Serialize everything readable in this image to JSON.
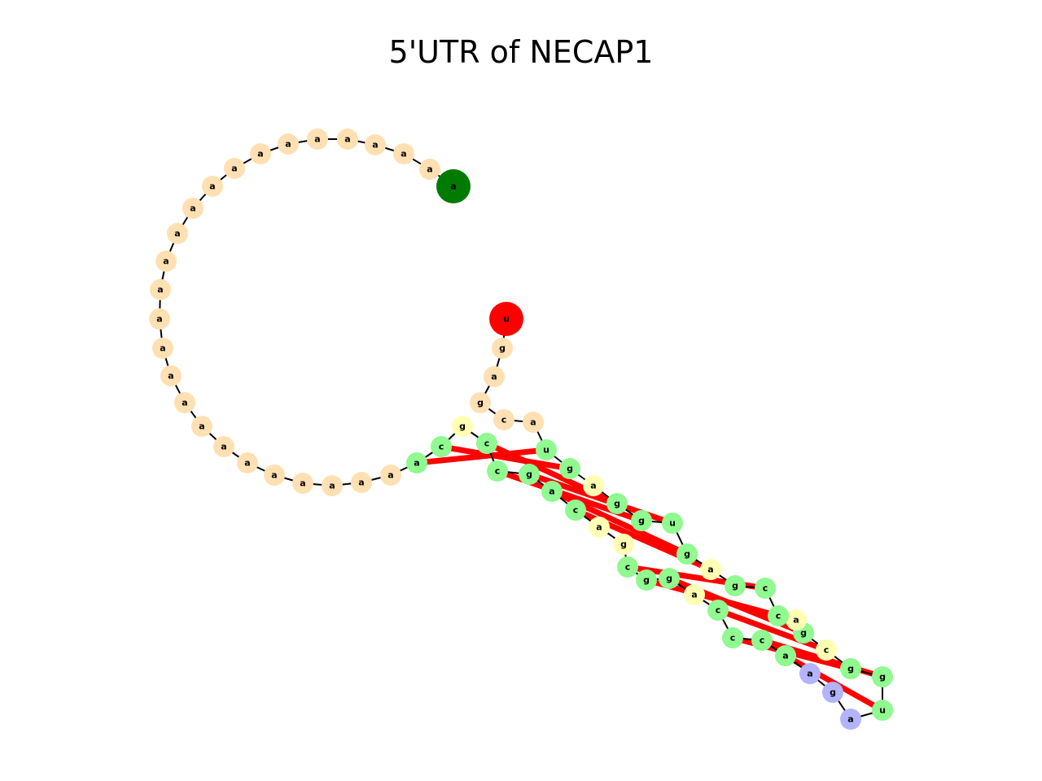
{
  "title": "5'UTR of NECAP1",
  "colors": {
    "loop": "#ffe0b3",
    "stem": "#90f990",
    "bulge": "#ffffb3",
    "hairpin": "#b3b3ff",
    "five_prime": "#007a00",
    "three_prime": "#ff0000",
    "backbone": "#000000",
    "pair": "#ff0000"
  },
  "nucleotides": [
    {
      "base": "a",
      "type": "five_prime"
    },
    {
      "base": "a",
      "type": "loop"
    },
    {
      "base": "a",
      "type": "loop"
    },
    {
      "base": "a",
      "type": "loop"
    },
    {
      "base": "a",
      "type": "loop"
    },
    {
      "base": "a",
      "type": "loop"
    },
    {
      "base": "a",
      "type": "loop"
    },
    {
      "base": "a",
      "type": "loop"
    },
    {
      "base": "a",
      "type": "loop"
    },
    {
      "base": "a",
      "type": "loop"
    },
    {
      "base": "a",
      "type": "loop"
    },
    {
      "base": "a",
      "type": "loop"
    },
    {
      "base": "a",
      "type": "loop"
    },
    {
      "base": "a",
      "type": "loop"
    },
    {
      "base": "a",
      "type": "loop"
    },
    {
      "base": "a",
      "type": "loop"
    },
    {
      "base": "a",
      "type": "loop"
    },
    {
      "base": "a",
      "type": "loop"
    },
    {
      "base": "a",
      "type": "loop"
    },
    {
      "base": "a",
      "type": "loop"
    },
    {
      "base": "a",
      "type": "loop"
    },
    {
      "base": "a",
      "type": "loop"
    },
    {
      "base": "a",
      "type": "loop"
    },
    {
      "base": "a",
      "type": "loop"
    },
    {
      "base": "a",
      "type": "loop"
    },
    {
      "base": "a",
      "type": "loop"
    },
    {
      "base": "a",
      "type": "stem"
    },
    {
      "base": "c",
      "type": "stem"
    },
    {
      "base": "g",
      "type": "bulge"
    },
    {
      "base": "c",
      "type": "stem"
    },
    {
      "base": "c",
      "type": "stem"
    },
    {
      "base": "g",
      "type": "stem"
    },
    {
      "base": "a",
      "type": "stem"
    },
    {
      "base": "c",
      "type": "stem"
    },
    {
      "base": "a",
      "type": "bulge"
    },
    {
      "base": "g",
      "type": "bulge"
    },
    {
      "base": "c",
      "type": "stem"
    },
    {
      "base": "g",
      "type": "stem"
    },
    {
      "base": "g",
      "type": "stem"
    },
    {
      "base": "a",
      "type": "bulge"
    },
    {
      "base": "c",
      "type": "stem"
    },
    {
      "base": "c",
      "type": "stem"
    },
    {
      "base": "c",
      "type": "stem"
    },
    {
      "base": "a",
      "type": "stem"
    },
    {
      "base": "a",
      "type": "hairpin"
    },
    {
      "base": "g",
      "type": "hairpin"
    },
    {
      "base": "a",
      "type": "hairpin"
    },
    {
      "base": "u",
      "type": "stem"
    },
    {
      "base": "g",
      "type": "stem"
    },
    {
      "base": "g",
      "type": "stem"
    },
    {
      "base": "c",
      "type": "bulge"
    },
    {
      "base": "g",
      "type": "stem"
    },
    {
      "base": "a",
      "type": "bulge"
    },
    {
      "base": "c",
      "type": "stem"
    },
    {
      "base": "c",
      "type": "stem"
    },
    {
      "base": "g",
      "type": "stem"
    },
    {
      "base": "a",
      "type": "bulge"
    },
    {
      "base": "g",
      "type": "stem"
    },
    {
      "base": "u",
      "type": "stem"
    },
    {
      "base": "g",
      "type": "stem"
    },
    {
      "base": "g",
      "type": "stem"
    },
    {
      "base": "a",
      "type": "bulge"
    },
    {
      "base": "g",
      "type": "stem"
    },
    {
      "base": "u",
      "type": "stem"
    },
    {
      "base": "a",
      "type": "loop"
    },
    {
      "base": "c",
      "type": "loop"
    },
    {
      "base": "g",
      "type": "loop"
    },
    {
      "base": "a",
      "type": "loop"
    },
    {
      "base": "g",
      "type": "loop"
    },
    {
      "base": "u",
      "type": "three_prime"
    }
  ],
  "base_pairs": [
    [
      26,
      63
    ],
    [
      27,
      62
    ],
    [
      29,
      60
    ],
    [
      30,
      59
    ],
    [
      31,
      58
    ],
    [
      32,
      57
    ],
    [
      33,
      56
    ],
    [
      36,
      54
    ],
    [
      37,
      53
    ],
    [
      38,
      51
    ],
    [
      40,
      50
    ],
    [
      41,
      49
    ],
    [
      42,
      48
    ],
    [
      43,
      47
    ]
  ]
}
